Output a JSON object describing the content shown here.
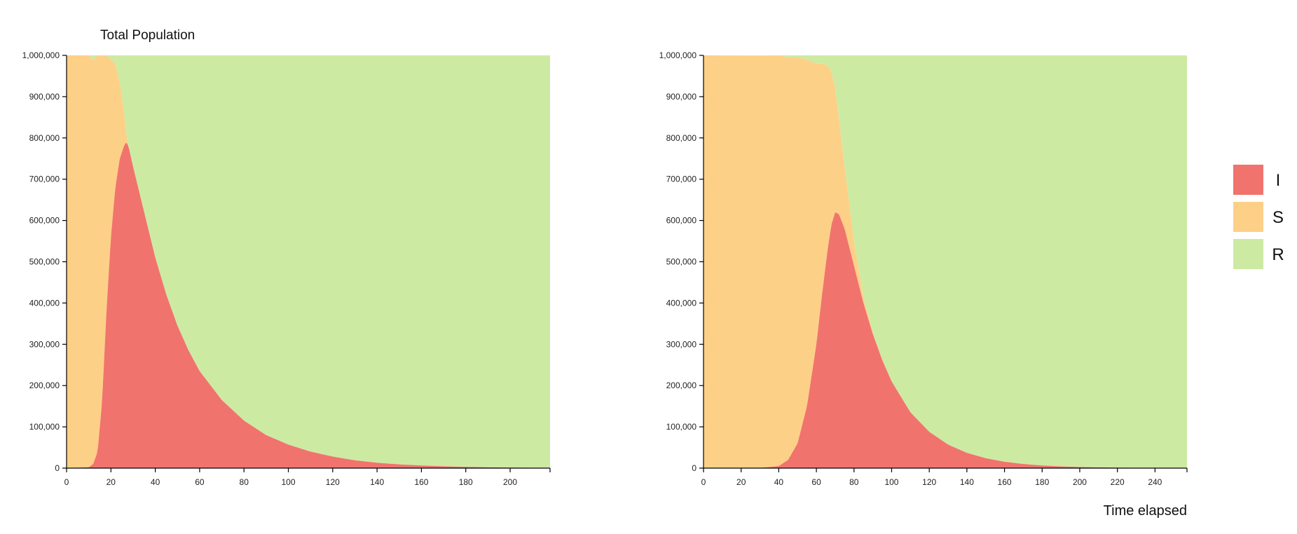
{
  "colors": {
    "I": "#f1736d",
    "S": "#fdd087",
    "R": "#cdea a3"
  },
  "legend": [
    {
      "key": "I",
      "label": "I",
      "color": "#f1736d"
    },
    {
      "key": "S",
      "label": "S",
      "color": "#fdd087"
    },
    {
      "key": "R",
      "label": "R",
      "color": "#cdeaa3"
    }
  ],
  "chart_data": [
    {
      "type": "area",
      "stacked": true,
      "title": "Total Population",
      "xlabel": "",
      "ylabel": "",
      "xlim": [
        0,
        218
      ],
      "ylim": [
        0,
        1000000
      ],
      "x_ticks": [
        "0",
        "20",
        "40",
        "60",
        "80",
        "100",
        "120",
        "140",
        "160",
        "180",
        "200"
      ],
      "x_tick_values": [
        0,
        20,
        40,
        60,
        80,
        100,
        120,
        140,
        160,
        180,
        200
      ],
      "y_ticks": [
        "0",
        "100,000",
        "200,000",
        "300,000",
        "400,000",
        "500,000",
        "600,000",
        "700,000",
        "800,000",
        "900,000",
        "1,000,000"
      ],
      "y_tick_values": [
        0,
        100000,
        200000,
        300000,
        400000,
        500000,
        600000,
        700000,
        800000,
        900000,
        1000000
      ],
      "stack_order": [
        "I",
        "S",
        "R"
      ],
      "series": [
        {
          "name": "I",
          "points": [
            [
              0,
              0
            ],
            [
              10,
              2000
            ],
            [
              12,
              10000
            ],
            [
              14,
              40000
            ],
            [
              16,
              160000
            ],
            [
              18,
              380000
            ],
            [
              20,
              560000
            ],
            [
              22,
              680000
            ],
            [
              24,
              750000
            ],
            [
              26,
              782000
            ],
            [
              27,
              790000
            ],
            [
              28,
              778000
            ],
            [
              30,
              730000
            ],
            [
              35,
              620000
            ],
            [
              40,
              510000
            ],
            [
              45,
              420000
            ],
            [
              50,
              345000
            ],
            [
              55,
              285000
            ],
            [
              60,
              235000
            ],
            [
              70,
              165000
            ],
            [
              80,
              115000
            ],
            [
              90,
              80000
            ],
            [
              100,
              57000
            ],
            [
              110,
              40000
            ],
            [
              120,
              28000
            ],
            [
              130,
              19000
            ],
            [
              140,
              13000
            ],
            [
              150,
              9000
            ],
            [
              160,
              6500
            ],
            [
              170,
              4500
            ],
            [
              180,
              3000
            ],
            [
              190,
              2000
            ],
            [
              200,
              1300
            ],
            [
              210,
              900
            ],
            [
              218,
              600
            ]
          ]
        },
        {
          "name": "S",
          "points": [
            [
              0,
              1000000
            ],
            [
              10,
              998000
            ],
            [
              14,
              960000
            ],
            [
              16,
              840000
            ],
            [
              18,
              620000
            ],
            [
              20,
              430000
            ],
            [
              22,
              300000
            ],
            [
              24,
              180000
            ],
            [
              26,
              80000
            ],
            [
              27,
              10000
            ],
            [
              28,
              0
            ],
            [
              218,
              0
            ]
          ]
        },
        {
          "name": "R",
          "points": [
            [
              0,
              0
            ],
            [
              16,
              0
            ],
            [
              18,
              0
            ],
            [
              20,
              10000
            ],
            [
              22,
              20000
            ],
            [
              24,
              70000
            ],
            [
              26,
              138000
            ],
            [
              27,
              200000
            ],
            [
              28,
              222000
            ],
            [
              30,
              270000
            ],
            [
              40,
              490000
            ],
            [
              60,
              765000
            ],
            [
              80,
              885000
            ],
            [
              100,
              943000
            ],
            [
              140,
              987000
            ],
            [
              200,
              998700
            ],
            [
              218,
              999400
            ]
          ]
        }
      ]
    },
    {
      "type": "area",
      "stacked": true,
      "title": "",
      "xlabel": "Time elapsed",
      "ylabel": "",
      "xlim": [
        0,
        257
      ],
      "ylim": [
        0,
        1000000
      ],
      "x_ticks": [
        "0",
        "20",
        "40",
        "60",
        "80",
        "100",
        "120",
        "140",
        "160",
        "180",
        "200",
        "220",
        "240"
      ],
      "x_tick_values": [
        0,
        20,
        40,
        60,
        80,
        100,
        120,
        140,
        160,
        180,
        200,
        220,
        240
      ],
      "y_ticks": [
        "0",
        "100,000",
        "200,000",
        "300,000",
        "400,000",
        "500,000",
        "600,000",
        "700,000",
        "800,000",
        "900,000",
        "1,000,000"
      ],
      "y_tick_values": [
        0,
        100000,
        200000,
        300000,
        400000,
        500000,
        600000,
        700000,
        800000,
        900000,
        1000000
      ],
      "stack_order": [
        "I",
        "S",
        "R"
      ],
      "series": [
        {
          "name": "I",
          "points": [
            [
              0,
              0
            ],
            [
              30,
              500
            ],
            [
              40,
              5000
            ],
            [
              45,
              20000
            ],
            [
              50,
              60000
            ],
            [
              55,
              150000
            ],
            [
              60,
              300000
            ],
            [
              63,
              420000
            ],
            [
              66,
              530000
            ],
            [
              68,
              590000
            ],
            [
              70,
              620000
            ],
            [
              72,
              615000
            ],
            [
              75,
              580000
            ],
            [
              80,
              490000
            ],
            [
              85,
              400000
            ],
            [
              90,
              325000
            ],
            [
              95,
              262000
            ],
            [
              100,
              210000
            ],
            [
              110,
              135000
            ],
            [
              120,
              88000
            ],
            [
              130,
              57000
            ],
            [
              140,
              37000
            ],
            [
              150,
              24000
            ],
            [
              160,
              15500
            ],
            [
              170,
              10000
            ],
            [
              180,
              6500
            ],
            [
              190,
              4200
            ],
            [
              200,
              2700
            ],
            [
              210,
              1800
            ],
            [
              220,
              1200
            ],
            [
              230,
              800
            ],
            [
              240,
              500
            ],
            [
              257,
              300
            ]
          ]
        },
        {
          "name": "S",
          "points": [
            [
              0,
              1000000
            ],
            [
              30,
              999000
            ],
            [
              40,
              995000
            ],
            [
              45,
              975000
            ],
            [
              50,
              935000
            ],
            [
              55,
              840000
            ],
            [
              60,
              680000
            ],
            [
              63,
              560000
            ],
            [
              66,
              445000
            ],
            [
              68,
              370000
            ],
            [
              70,
              300000
            ],
            [
              72,
              230000
            ],
            [
              75,
              150000
            ],
            [
              80,
              60000
            ],
            [
              85,
              15000
            ],
            [
              90,
              3000
            ],
            [
              100,
              0
            ],
            [
              257,
              0
            ]
          ]
        },
        {
          "name": "R",
          "points": [
            [
              0,
              0
            ],
            [
              40,
              0
            ],
            [
              45,
              5000
            ],
            [
              50,
              5000
            ],
            [
              55,
              10000
            ],
            [
              60,
              20000
            ],
            [
              66,
              25000
            ],
            [
              70,
              80000
            ],
            [
              75,
              270000
            ],
            [
              80,
              450000
            ],
            [
              90,
              672000
            ],
            [
              100,
              790000
            ],
            [
              120,
              912000
            ],
            [
              150,
              976000
            ],
            [
              200,
              997300
            ],
            [
              257,
              999700
            ]
          ]
        }
      ]
    }
  ]
}
